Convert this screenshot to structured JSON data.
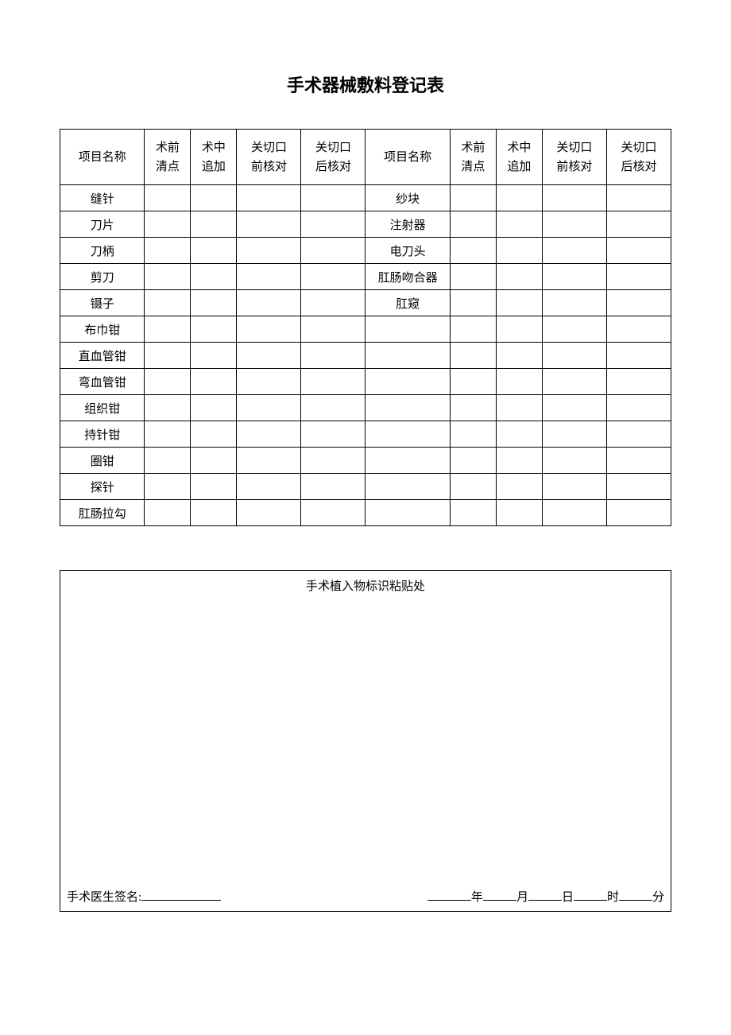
{
  "document": {
    "title": "手术器械敷料登记表",
    "table": {
      "headers": {
        "col1": "项目名称",
        "col2a": "术前",
        "col2b": "清点",
        "col3a": "术中",
        "col3b": "追加",
        "col4a": "关切口",
        "col4b": "前核对",
        "col5a": "关切口",
        "col5b": "后核对",
        "col6": "项目名称",
        "col7a": "术前",
        "col7b": "清点",
        "col8a": "术中",
        "col8b": "追加",
        "col9a": "关切口",
        "col9b": "前核对",
        "col10a": "关切口",
        "col10b": "后核对"
      },
      "rows": [
        {
          "left": "缝针",
          "right": "纱块"
        },
        {
          "left": "刀片",
          "right": "注射器"
        },
        {
          "left": "刀柄",
          "right": "电刀头"
        },
        {
          "left": "剪刀",
          "right": "肛肠吻合器"
        },
        {
          "left": "镊子",
          "right": "肛窥"
        },
        {
          "left": "布巾钳",
          "right": ""
        },
        {
          "left": "直血管钳",
          "right": ""
        },
        {
          "left": "弯血管钳",
          "right": ""
        },
        {
          "left": "组织钳",
          "right": ""
        },
        {
          "left": "持针钳",
          "right": ""
        },
        {
          "left": "圈钳",
          "right": ""
        },
        {
          "left": "探针",
          "right": ""
        },
        {
          "left": "肛肠拉勾",
          "right": ""
        }
      ]
    },
    "implant_box": {
      "title": "手术植入物标识粘贴处",
      "signature_label": "手术医生签名:",
      "date_labels": {
        "year": "年",
        "month": "月",
        "day": "日",
        "hour": "时",
        "minute": "分"
      }
    },
    "styling": {
      "background_color": "#ffffff",
      "text_color": "#000000",
      "border_color": "#000000",
      "title_fontsize": 22,
      "body_fontsize": 15,
      "font_family": "SimSun"
    }
  }
}
